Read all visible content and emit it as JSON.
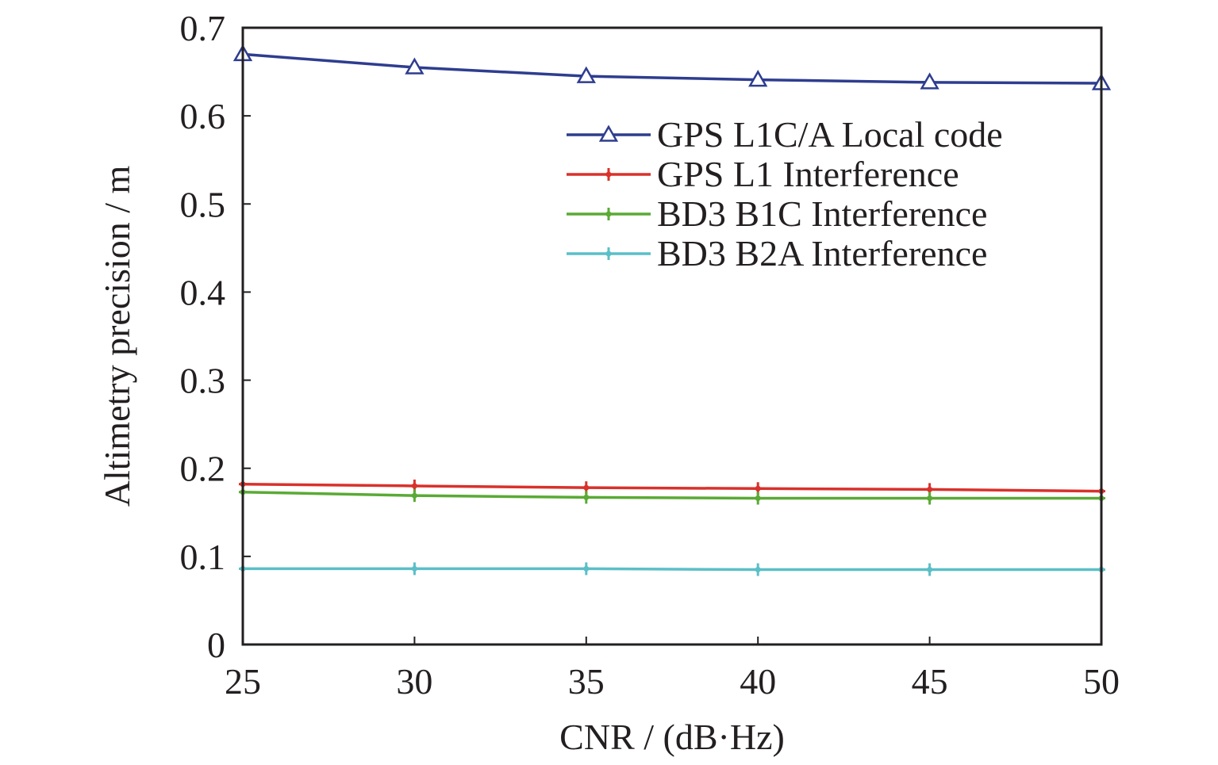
{
  "chart_data": {
    "type": "line",
    "title": "",
    "xlabel": "CNR / (dB·Hz)",
    "ylabel": "Altimetry precision / m",
    "xlim": [
      25,
      50
    ],
    "ylim": [
      0,
      0.7
    ],
    "x": [
      25,
      30,
      35,
      40,
      45,
      50
    ],
    "x_ticks": [
      "25",
      "30",
      "35",
      "40",
      "45",
      "50"
    ],
    "y_tick_values": [
      0,
      0.1,
      0.2,
      0.3,
      0.4,
      0.5,
      0.6,
      0.7
    ],
    "y_ticks": [
      "0",
      "0.1",
      "0.2",
      "0.3",
      "0.4",
      "0.5",
      "0.6",
      "0.7"
    ],
    "grid": false,
    "legend_position": "top-right",
    "series": [
      {
        "name": "GPS L1C/A Local code",
        "color": "#2e3d8f",
        "marker": "triangle-open",
        "values": [
          0.67,
          0.655,
          0.645,
          0.641,
          0.638,
          0.637
        ]
      },
      {
        "name": "GPS L1 Interference",
        "color": "#d9312b",
        "marker": "cross",
        "values": [
          0.182,
          0.18,
          0.178,
          0.177,
          0.176,
          0.174
        ]
      },
      {
        "name": "BD3 B1C Interference",
        "color": "#5aaa35",
        "marker": "cross",
        "values": [
          0.173,
          0.169,
          0.167,
          0.166,
          0.166,
          0.166
        ]
      },
      {
        "name": "BD3 B2A Interference",
        "color": "#5bbfc8",
        "marker": "cross",
        "values": [
          0.086,
          0.086,
          0.086,
          0.085,
          0.085,
          0.085
        ]
      }
    ]
  }
}
